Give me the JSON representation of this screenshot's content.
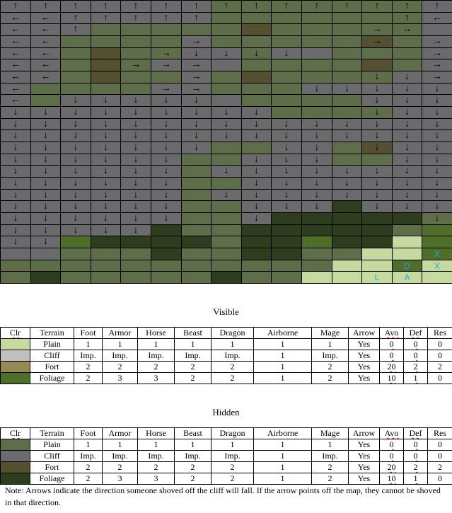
{
  "map": {
    "cols": 15,
    "rows": 24,
    "palette": {
      "G": "#5e6e4a",
      "g": "#4f5c3f",
      "F": "#55502f",
      "C": "#6b6b6e",
      "D": "#2e3d1d",
      "V": "#4e6e2a",
      "L": "#c6d9a0"
    },
    "arrows": {
      "u": "↑",
      "l": "←",
      "d": "↓",
      "r": "→",
      ".": ""
    },
    "terrain": [
      "CCCCCCCGGGGGGGC",
      "CCCCCCCGGGGGGGC",
      "CCCGGGGGFGGGGGC",
      "CCGGGGCGGGGGFGC",
      "CCGFGGCCGCCGGGC",
      "CCGFGCCCGGGGFGC",
      "CCGFGGCGFGGGGCC",
      "CGGGGCCGGGCCCCC",
      "CGCCCCCCGGGGCCC",
      "CCCCCCCCCGGGGCC",
      "CCCCCCCCCCCCCCC",
      "CCCCCCCCCCCCCCC",
      "CCCCCCCGGCCGFCC",
      "CCCCCCGGCCCGGCC",
      "CCCCCCGCCCCCCCC",
      "CCCCCCGGCCCCCCC",
      "CCCCCCGCCCCCCCC",
      "CCCCCCGGCCCDCCC",
      "CCCCCCGGCDDDDDG",
      "CCCCCDGGDDDDDGV",
      "CCVDDDDGDDVDDLV",
      "CCGGGDGGDDGGLLV",
      "GGGGGGGGGGGLLVL",
      "GDGGGGGDGGLLLLL"
    ],
    "arrowRows": [
      "uuuuuuuuuuuuuuu",
      "lluuuuu......ul",
      "llu.........rr.",
      "ll....r.....r.r",
      "ll...rdddd....r",
      "ll..rrr.......r",
      "ll....r.....ddr",
      "l....rr...ddddd",
      "l.ddddd.....ddd",
      "ddddddddd...ddd",
      "ddddddddddddddd",
      "ddddddddddddddd",
      "ddddddd..dd.ddd",
      "dddddd..ddd..dd",
      "dddddd.dddddddd",
      "dddddd..ddddddd",
      "dddddd.dddddddd",
      "dddddd..ddd.ddd",
      "dddddd..d.....d",
      "ddddd..........",
      "dd.............",
      "...............",
      "...............",
      "..............."
    ],
    "markers": [
      {
        "row": 21,
        "col": 14,
        "text": "X"
      },
      {
        "row": 22,
        "col": 13,
        "text": "D"
      },
      {
        "row": 22,
        "col": 14,
        "text": "X"
      },
      {
        "row": 23,
        "col": 12,
        "text": "L"
      },
      {
        "row": 23,
        "col": 13,
        "text": "A"
      }
    ]
  },
  "visible_heading": "Visible",
  "hidden_heading": "Hidden",
  "table_headers": [
    "Clr",
    "Terrain",
    "Foot",
    "Armor",
    "Horse",
    "Beast",
    "Dragon",
    "Airborne",
    "Mage",
    "Arrow",
    "Avo",
    "Def",
    "Res"
  ],
  "visible_rows": [
    {
      "color": "#c6d9a0",
      "cells": [
        "Plain",
        "1",
        "1",
        "1",
        "1",
        "1",
        "1",
        "1",
        "Yes",
        "0",
        "0",
        "0"
      ]
    },
    {
      "color": "#c0c0c0",
      "cells": [
        "Cliff",
        "Imp.",
        "Imp.",
        "Imp.",
        "Imp.",
        "Imp.",
        "1",
        "Imp.",
        "Yes",
        "0",
        "0",
        "0"
      ]
    },
    {
      "color": "#978a57",
      "cells": [
        "Fort",
        "2",
        "2",
        "2",
        "2",
        "2",
        "1",
        "2",
        "Yes",
        "20",
        "2",
        "2"
      ]
    },
    {
      "color": "#4e6e2a",
      "cells": [
        "Foliage",
        "2",
        "3",
        "3",
        "2",
        "2",
        "1",
        "2",
        "Yes",
        "10",
        "1",
        "0"
      ]
    }
  ],
  "hidden_rows": [
    {
      "color": "#5e6e4a",
      "cells": [
        "Plain",
        "1",
        "1",
        "1",
        "1",
        "1",
        "1",
        "1",
        "Yes",
        "0",
        "0",
        "0"
      ]
    },
    {
      "color": "#6b6b6e",
      "cells": [
        "Cliff",
        "Imp.",
        "Imp.",
        "Imp.",
        "Imp.",
        "Imp.",
        "1",
        "Imp.",
        "Yes",
        "0",
        "0",
        "0"
      ]
    },
    {
      "color": "#55502f",
      "cells": [
        "Fort",
        "2",
        "2",
        "2",
        "2",
        "2",
        "1",
        "2",
        "Yes",
        "20",
        "2",
        "2"
      ]
    },
    {
      "color": "#2e3d1d",
      "cells": [
        "Foliage",
        "2",
        "3",
        "3",
        "2",
        "2",
        "1",
        "2",
        "Yes",
        "10",
        "1",
        "0"
      ]
    }
  ],
  "note": "Note: Arrows indicate the direction someone shoved off the cliff will fall.  If the arrow points off the map, they cannot be shoved in that direction."
}
